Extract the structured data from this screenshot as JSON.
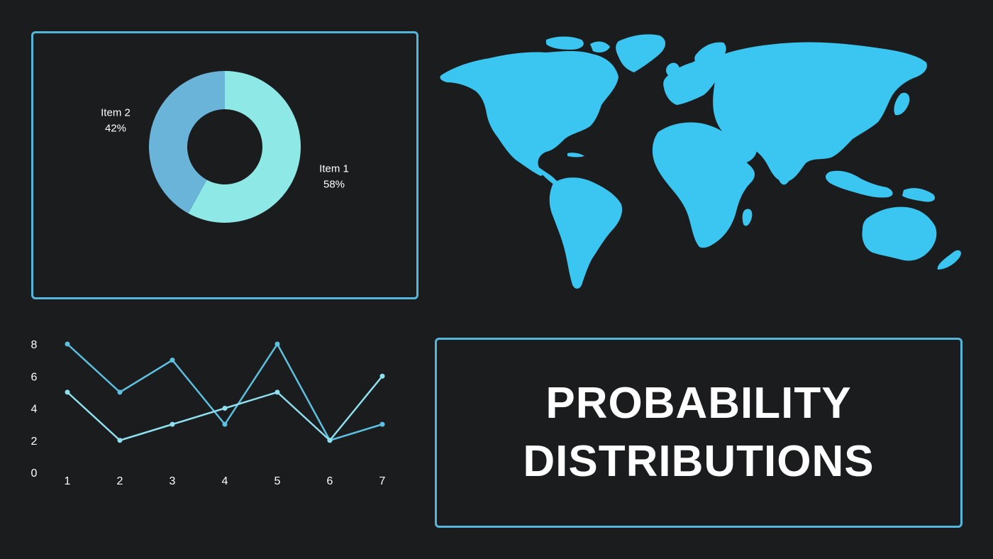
{
  "colors": {
    "background": "#1b1c1d",
    "frame": "#55b6dc",
    "donut_item1": "#8de8e6",
    "donut_item2": "#6ab4da",
    "line_series_a": "#5ec0e0",
    "line_series_b": "#8fe0ee",
    "map_fill": "#3ac6f0",
    "title_text": "#ffffff"
  },
  "title": {
    "line1": "PROBABILITY",
    "line2": "DISTRIBUTIONS"
  },
  "map": {
    "icon": "world-map-icon"
  },
  "chart_data": [
    {
      "type": "pie",
      "variant": "donut",
      "slices": [
        {
          "label": "Item 1",
          "value": 58,
          "value_label": "58%"
        },
        {
          "label": "Item 2",
          "value": 42,
          "value_label": "42%"
        }
      ]
    },
    {
      "type": "line",
      "x": [
        1,
        2,
        3,
        4,
        5,
        6,
        7
      ],
      "ylim": [
        0,
        8
      ],
      "yticks": [
        0,
        2,
        4,
        6,
        8
      ],
      "series": [
        {
          "values": [
            8,
            5,
            7,
            3,
            8,
            2,
            3
          ]
        },
        {
          "values": [
            5,
            2,
            3,
            4,
            5,
            2,
            6
          ]
        }
      ],
      "grid": false
    }
  ]
}
